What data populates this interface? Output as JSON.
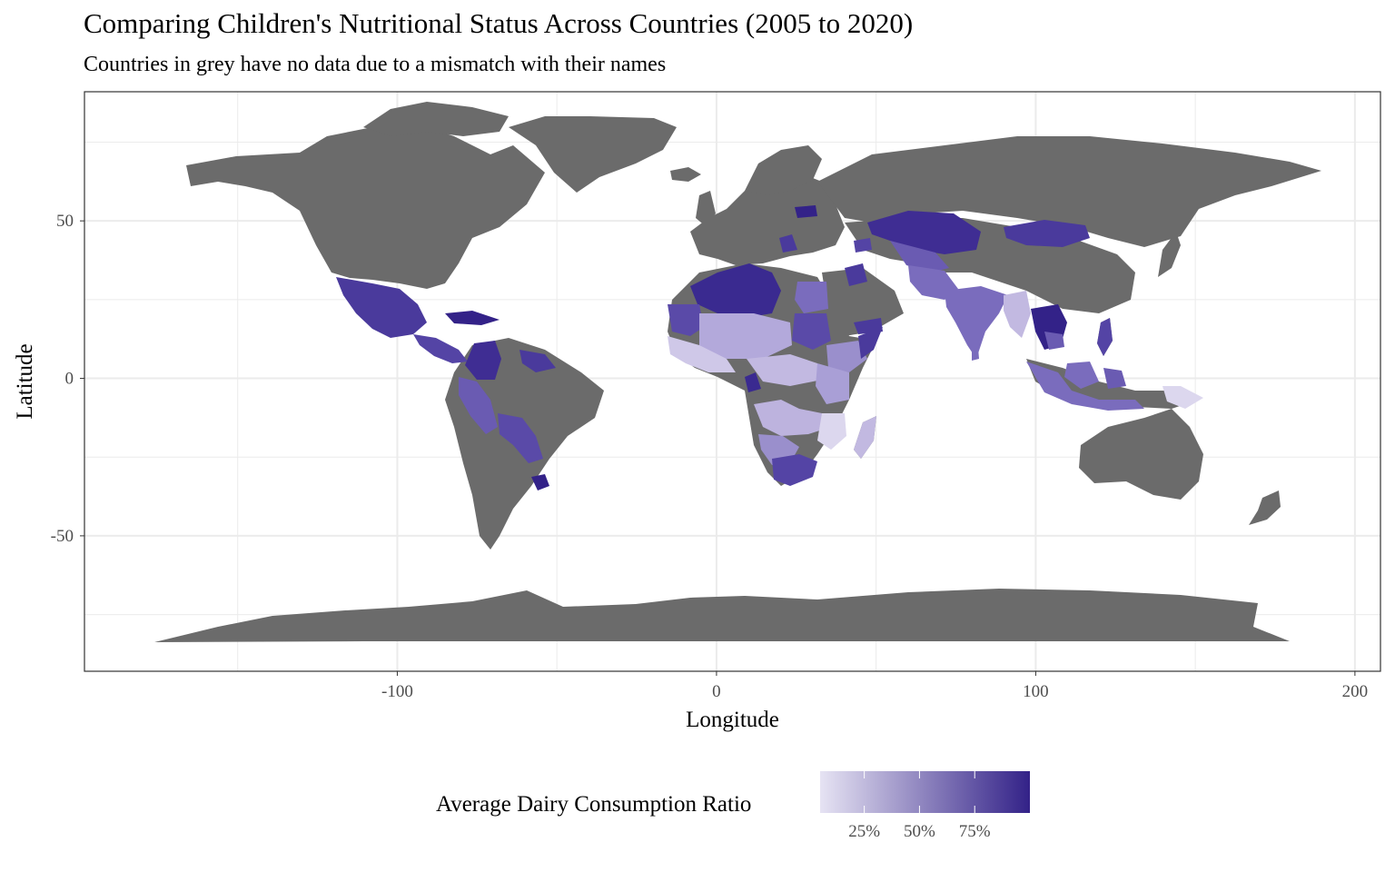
{
  "header": {
    "title": "Comparing Children's Nutritional Status Across Countries (2005 to 2020)",
    "subtitle": "Countries in grey have no data due to a mismatch with their names"
  },
  "colors": {
    "no_data": "#6b6b6b",
    "scale_low": "#e6e3f3",
    "scale_high": "#332288",
    "grid": "#ebebeb",
    "panel_border": "#333333"
  },
  "chart_data": {
    "type": "choropleth",
    "xlabel": "Longitude",
    "ylabel": "Latitude",
    "xlim": [
      -198,
      208
    ],
    "ylim": [
      -93,
      91
    ],
    "x_ticks": [
      -100,
      0,
      100,
      200
    ],
    "y_ticks": [
      -50,
      0,
      50
    ],
    "x_tick_labels": [
      "-100",
      "0",
      "100",
      "200"
    ],
    "y_tick_labels": [
      "-50",
      "0",
      "50"
    ],
    "grid": true,
    "legend": {
      "title": "Average Dairy Consumption Ratio",
      "position": "bottom",
      "range": [
        0.05,
        1.0
      ],
      "breaks": [
        0.25,
        0.5,
        0.75
      ],
      "labels": [
        "25%",
        "50%",
        "75%"
      ]
    }
  }
}
